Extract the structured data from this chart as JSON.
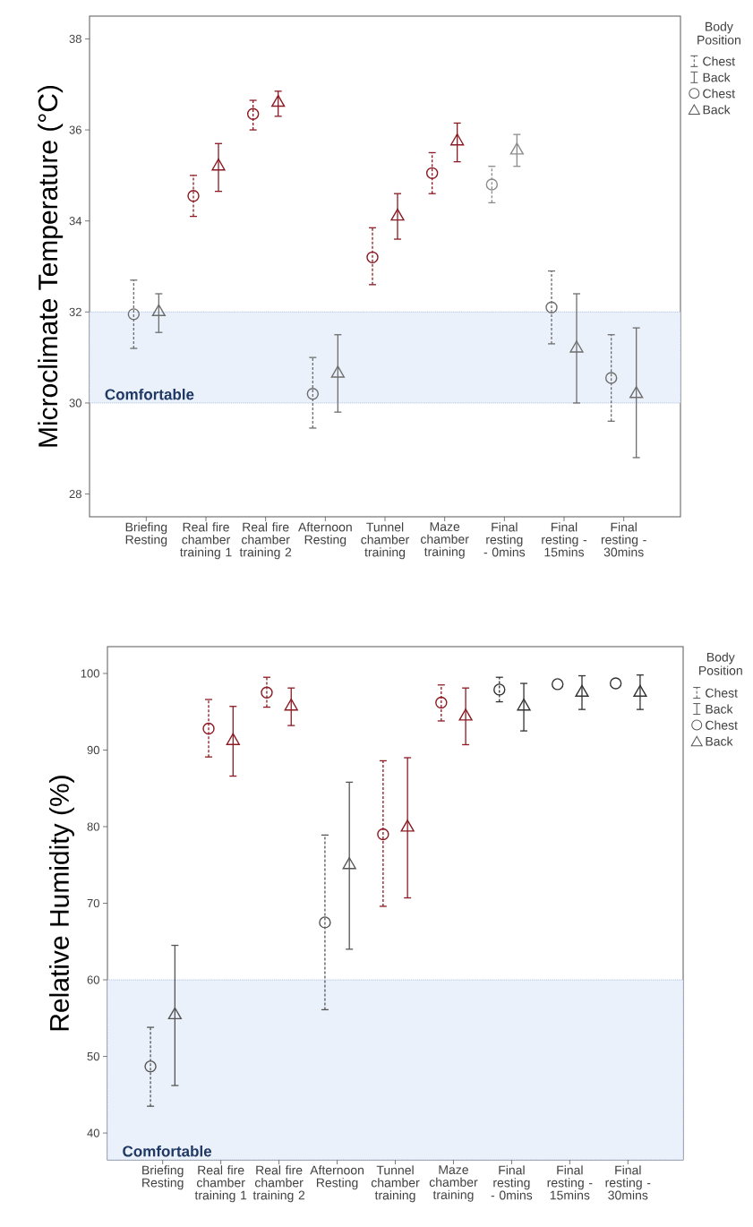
{
  "chart_data": [
    {
      "type": "scatter",
      "ylabel": "Microclimate Temperature (°C)",
      "categories": [
        "Briefing Resting",
        "Real fire chamber training 1",
        "Real fire chamber training 2",
        "Afternoon Resting",
        "Tunnel chamber training",
        "Maze chamber training",
        "Final resting - 0mins",
        "Final resting - 15mins",
        "Final resting - 30mins"
      ],
      "ylim": [
        27.5,
        38.5
      ],
      "yticks": [
        28,
        30,
        32,
        34,
        36,
        38
      ],
      "grid": false,
      "legend": "right",
      "legend_title": "Body Position",
      "bands": [
        {
          "axis": "y",
          "from": 30,
          "to": 32,
          "label": "Comfortable",
          "color": "#eaf1fa"
        }
      ],
      "series": [
        {
          "name": "Chest",
          "marker": "circle",
          "line_style": "dashed",
          "colors": [
            "#6e6e6e",
            "#8b1a22",
            "#8b1a22",
            "#6e6e6e",
            "#8b1a22",
            "#8b1a22",
            "#8c8c8c",
            "#6e6e6e",
            "#6e6e6e"
          ],
          "values": [
            31.95,
            34.55,
            36.35,
            30.2,
            33.2,
            35.05,
            34.8,
            32.1,
            30.55
          ],
          "errors": [
            [
              31.2,
              32.7
            ],
            [
              34.1,
              35.0
            ],
            [
              36.0,
              36.65
            ],
            [
              29.45,
              31.0
            ],
            [
              32.6,
              33.85
            ],
            [
              34.6,
              35.5
            ],
            [
              34.4,
              35.2
            ],
            [
              31.3,
              32.9
            ],
            [
              29.6,
              31.5
            ]
          ]
        },
        {
          "name": "Back",
          "marker": "triangle",
          "line_style": "solid",
          "colors": [
            "#6e6e6e",
            "#8b1a22",
            "#8b1a22",
            "#6e6e6e",
            "#8b1a22",
            "#8b1a22",
            "#8c8c8c",
            "#6e6e6e",
            "#6e6e6e"
          ],
          "values": [
            32.0,
            35.2,
            36.6,
            30.65,
            34.1,
            35.75,
            35.55,
            31.2,
            30.2
          ],
          "errors": [
            [
              31.55,
              32.4
            ],
            [
              34.65,
              35.7
            ],
            [
              36.3,
              36.85
            ],
            [
              29.8,
              31.5
            ],
            [
              33.6,
              34.6
            ],
            [
              35.3,
              36.15
            ],
            [
              35.2,
              35.9
            ],
            [
              30.0,
              32.4
            ],
            [
              28.8,
              31.65
            ]
          ]
        }
      ]
    },
    {
      "type": "scatter",
      "ylabel": "Relative Humidity (%)",
      "categories": [
        "Briefing Resting",
        "Real fire chamber training 1",
        "Real fire chamber training 2",
        "Afternoon Resting",
        "Tunnel chamber training",
        "Maze chamber training",
        "Final resting - 0mins",
        "Final resting - 15mins",
        "Final resting - 30mins"
      ],
      "ylim": [
        36.5,
        103.5
      ],
      "yticks": [
        40,
        50,
        60,
        70,
        80,
        90,
        100
      ],
      "grid": false,
      "legend": "right",
      "legend_title": "Body Position",
      "bands": [
        {
          "axis": "y",
          "from": 36.5,
          "to": 60,
          "label": "Comfortable",
          "color": "#eaf1fa"
        }
      ],
      "series": [
        {
          "name": "Chest",
          "marker": "circle",
          "line_style": "dashed",
          "colors": [
            "#555555",
            "#8b1a22",
            "#8b1a22",
            "#555555",
            "#8b1a22",
            "#8b1a22",
            "#333333",
            "#333333",
            "#333333"
          ],
          "values": [
            48.7,
            92.8,
            97.5,
            67.5,
            79.0,
            96.2,
            97.9,
            98.6,
            98.7
          ],
          "errors": [
            [
              43.5,
              53.8
            ],
            [
              89.1,
              96.6
            ],
            [
              95.6,
              99.5
            ],
            [
              56.1,
              78.9
            ],
            [
              69.6,
              88.6
            ],
            [
              93.8,
              98.5
            ],
            [
              96.3,
              99.5
            ],
            null,
            null
          ]
        },
        {
          "name": "Back",
          "marker": "triangle",
          "line_style": "solid",
          "colors": [
            "#555555",
            "#8b1a22",
            "#8b1a22",
            "#555555",
            "#8b1a22",
            "#8b1a22",
            "#333333",
            "#333333",
            "#333333"
          ],
          "values": [
            55.4,
            91.2,
            95.7,
            75.0,
            79.9,
            94.4,
            95.7,
            97.5,
            97.5
          ],
          "errors": [
            [
              46.2,
              64.5
            ],
            [
              86.6,
              95.7
            ],
            [
              93.2,
              98.1
            ],
            [
              64.0,
              85.8
            ],
            [
              70.7,
              89.0
            ],
            [
              90.7,
              98.1
            ],
            [
              92.5,
              98.7
            ],
            [
              95.3,
              99.7
            ],
            [
              95.3,
              99.8
            ]
          ]
        }
      ]
    }
  ]
}
